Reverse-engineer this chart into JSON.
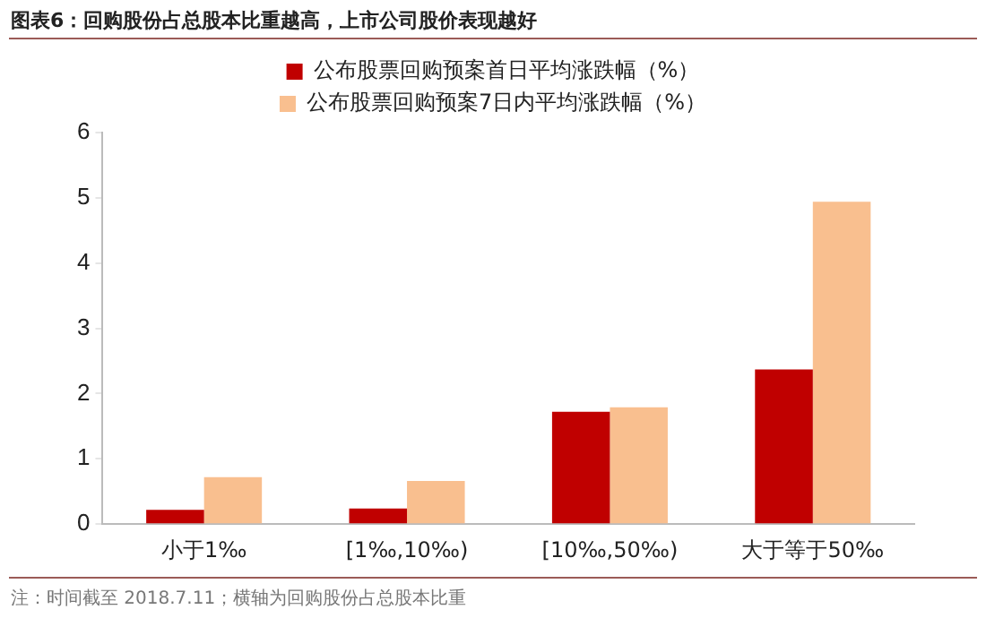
{
  "chart_data": {
    "type": "bar",
    "title": "图表6：回购股份占总股本比重越高，上市公司股价表现越好",
    "categories": [
      "小于1‰",
      "[1‰,10‰)",
      "[10‰,50‰)",
      "大于等于50‰"
    ],
    "series": [
      {
        "name": "公布股票回购预案首日平均涨跌幅（%）",
        "color": "#c00000",
        "values": [
          0.22,
          0.24,
          1.72,
          2.37
        ]
      },
      {
        "name": "公布股票回购预案7日内平均涨跌幅（%）",
        "color": "#f9bf8f",
        "values": [
          0.72,
          0.66,
          1.79,
          4.94
        ]
      }
    ],
    "ylim": [
      0,
      6
    ],
    "yticks": [
      0,
      1,
      2,
      3,
      4,
      5,
      6
    ],
    "grid": false,
    "legend": "top",
    "annotations": [
      "注：时间截至 2018.7.11；横轴为回购股份占总股本比重"
    ]
  }
}
